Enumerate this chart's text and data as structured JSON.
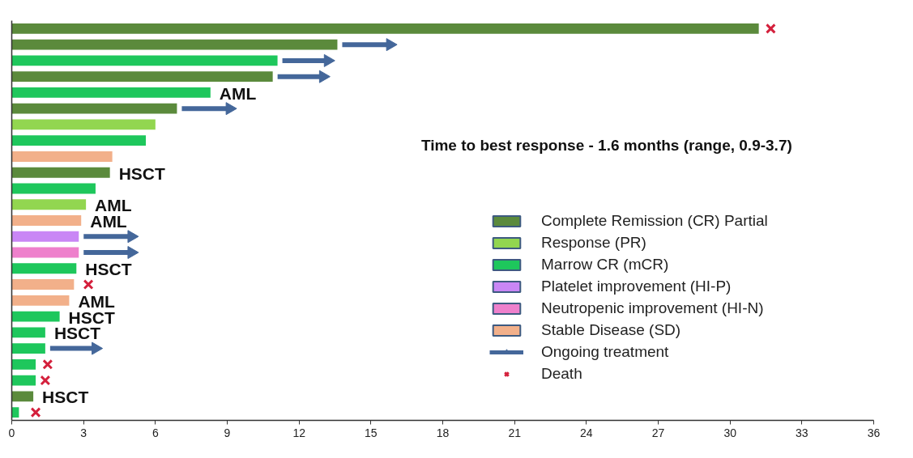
{
  "chart_data": {
    "type": "bar",
    "orientation": "horizontal",
    "categories": [
      null,
      null,
      null,
      null,
      null,
      null,
      null,
      null,
      null,
      null,
      null,
      null,
      null,
      null,
      null,
      null,
      null,
      null,
      null,
      null,
      null,
      null,
      null,
      null,
      null
    ],
    "xlim": [
      0,
      36
    ],
    "xticks": [
      0,
      3,
      6,
      9,
      12,
      15,
      18,
      21,
      24,
      27,
      30,
      33,
      36
    ],
    "tick_labels": "x",
    "legend": "bottom right",
    "annotations": [
      "Time to best response - 1.6 months (range, 0.9-3.7)"
    ],
    "series": [
      {
        "name": "Complete Remission (CR) Partial",
        "color": "#5b8a3c",
        "values": [
          31.2,
          13.6,
          null,
          10.9,
          null,
          6.9,
          null,
          null,
          null,
          4.1,
          null,
          null,
          null,
          null,
          null,
          null,
          null,
          null,
          null,
          null,
          null,
          null,
          null,
          0.9,
          null
        ],
        "value_labels": [
          null,
          null,
          null,
          null,
          null,
          null,
          null,
          null,
          null,
          "HSCT",
          null,
          null,
          null,
          null,
          null,
          null,
          null,
          null,
          null,
          null,
          null,
          null,
          null,
          "HSCT",
          null
        ]
      },
      {
        "name": "Response (PR)",
        "color": "#92d650",
        "values": [
          null,
          null,
          null,
          null,
          null,
          null,
          6.0,
          null,
          null,
          null,
          null,
          3.1,
          null,
          null,
          null,
          null,
          null,
          null,
          null,
          null,
          null,
          null,
          null,
          null,
          null
        ],
        "value_labels": [
          null,
          null,
          null,
          null,
          null,
          null,
          null,
          null,
          null,
          null,
          null,
          "AML",
          null,
          null,
          null,
          null,
          null,
          null,
          null,
          null,
          null,
          null,
          null,
          null,
          null
        ]
      },
      {
        "name": "Marrow CR (mCR)",
        "color": "#1ec75c",
        "values": [
          null,
          null,
          11.1,
          null,
          8.3,
          null,
          null,
          5.6,
          null,
          null,
          3.5,
          null,
          null,
          null,
          null,
          2.7,
          null,
          null,
          2.0,
          1.4,
          1.4,
          1.0,
          1.0,
          null,
          0.3
        ],
        "value_labels": [
          null,
          null,
          null,
          null,
          "AML",
          null,
          null,
          null,
          null,
          null,
          null,
          null,
          null,
          null,
          null,
          "HSCT",
          null,
          null,
          "HSCT",
          "HSCT",
          null,
          null,
          null,
          null,
          null
        ]
      },
      {
        "name": "Platelet improvement (HI-P)",
        "color": "#c986f5",
        "values": [
          null,
          null,
          null,
          null,
          null,
          null,
          null,
          null,
          null,
          null,
          null,
          null,
          null,
          2.8,
          null,
          null,
          null,
          null,
          null,
          null,
          null,
          null,
          null,
          null,
          null
        ]
      },
      {
        "name": "Neutropenic improvement (HI-N)",
        "color": "#ee80cc",
        "values": [
          null,
          null,
          null,
          null,
          null,
          null,
          null,
          null,
          null,
          null,
          null,
          null,
          null,
          null,
          2.8,
          null,
          null,
          null,
          null,
          null,
          null,
          null,
          null,
          null,
          null
        ]
      },
      {
        "name": "Stable Disease (SD)",
        "color": "#f2b08a",
        "values": [
          null,
          null,
          null,
          null,
          null,
          null,
          null,
          null,
          4.2,
          null,
          null,
          null,
          2.9,
          null,
          null,
          null,
          2.6,
          2.4,
          null,
          null,
          null,
          null,
          null,
          null,
          null
        ],
        "value_labels": [
          null,
          null,
          null,
          null,
          null,
          null,
          null,
          null,
          null,
          null,
          null,
          null,
          "AML",
          null,
          null,
          null,
          null,
          "AML",
          null,
          null,
          null,
          null,
          null,
          null,
          null
        ]
      },
      {
        "name": "Ongoing treatment",
        "type": "scatter",
        "marker": "triangle",
        "color": "#44679a",
        "values": [
          null,
          15.8,
          13.2,
          13.0,
          null,
          9.1,
          null,
          null,
          null,
          null,
          null,
          null,
          null,
          5.0,
          5.0,
          null,
          null,
          null,
          null,
          null,
          3.5,
          null,
          null,
          null,
          null
        ]
      },
      {
        "name": "Death",
        "type": "scatter",
        "marker": "cross",
        "color": "#d4203c",
        "values": [
          31.7,
          null,
          null,
          null,
          null,
          null,
          null,
          null,
          null,
          null,
          null,
          null,
          null,
          null,
          null,
          null,
          3.2,
          null,
          null,
          null,
          null,
          1.5,
          1.4,
          null,
          1.0
        ]
      }
    ]
  }
}
